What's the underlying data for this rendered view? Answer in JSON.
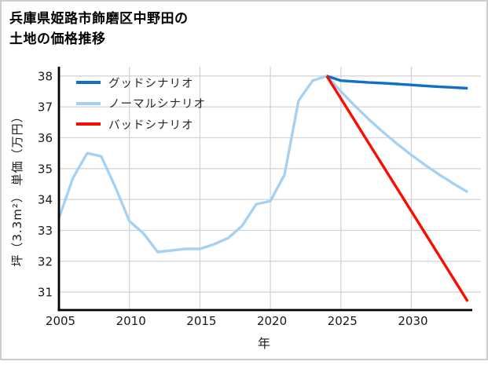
{
  "window": {
    "background": "#ffffff",
    "border_color": "#cdcdcd"
  },
  "chart_data": {
    "type": "line",
    "title": "兵庫県姫路市飾磨区中野田の\n土地の価格推移",
    "xlabel": "年",
    "ylabel": "坪（3.3m²） 単価（万円）",
    "xlim": [
      2005,
      2034.1
    ],
    "ylim": [
      30.42,
      38.3
    ],
    "xticks": [
      2005,
      2010,
      2015,
      2020,
      2025,
      2030
    ],
    "yticks": [
      31,
      32,
      33,
      34,
      35,
      36,
      37,
      38
    ],
    "grid": true,
    "grid_color": "#d4d4d4",
    "axis_color": "#000000",
    "tick_label_color": "#1a1a1a",
    "legend_position": "upper-left",
    "series": [
      {
        "name": "グッドシナリオ",
        "key": "good-scenario",
        "color": "#0f70c6",
        "x": [
          2024,
          2025,
          2026,
          2027,
          2028,
          2029,
          2030,
          2031,
          2032,
          2033,
          2034
        ],
        "values": [
          38.0,
          37.85,
          37.82,
          37.79,
          37.77,
          37.74,
          37.71,
          37.68,
          37.65,
          37.63,
          37.6
        ]
      },
      {
        "name": "ノーマルシナリオ",
        "key": "normal-scenario",
        "color": "#a7d1f3",
        "x": [
          2005,
          2006,
          2007,
          2008,
          2009,
          2010,
          2011,
          2012,
          2013,
          2014,
          2015,
          2016,
          2017,
          2018,
          2019,
          2020,
          2021,
          2022,
          2023,
          2024,
          2025,
          2026,
          2027,
          2028,
          2029,
          2030,
          2031,
          2032,
          2033,
          2034
        ],
        "values": [
          33.4,
          34.7,
          35.5,
          35.4,
          34.4,
          33.3,
          32.9,
          32.3,
          32.35,
          32.4,
          32.4,
          32.55,
          32.75,
          33.15,
          33.85,
          33.95,
          34.8,
          37.2,
          37.85,
          38.0,
          37.5,
          37.03,
          36.59,
          36.18,
          35.8,
          35.44,
          35.11,
          34.8,
          34.51,
          34.24
        ]
      },
      {
        "name": "バッドシナリオ",
        "key": "bad-scenario",
        "color": "#fa0d00",
        "x": [
          2024,
          2025,
          2026,
          2027,
          2028,
          2029,
          2030,
          2031,
          2032,
          2033,
          2034
        ],
        "values": [
          38.0,
          37.27,
          36.54,
          35.81,
          35.08,
          34.35,
          33.62,
          32.89,
          32.16,
          31.43,
          30.7
        ]
      }
    ]
  }
}
